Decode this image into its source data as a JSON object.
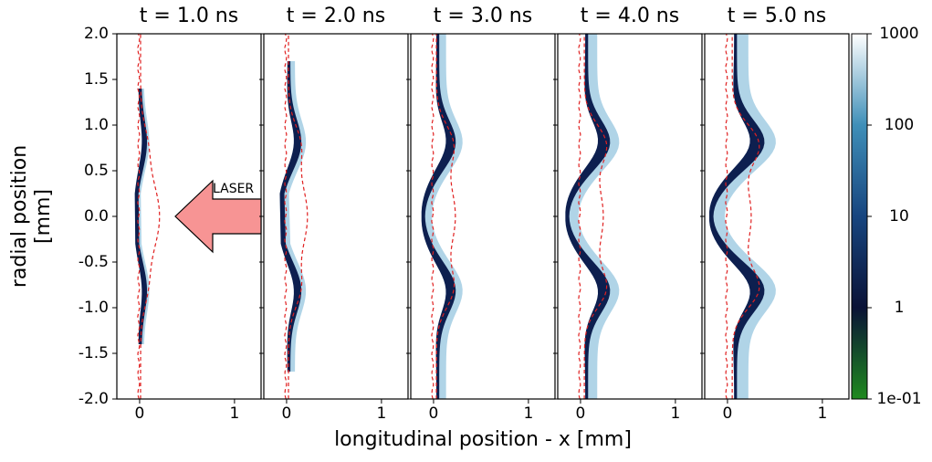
{
  "chart_data": [
    {
      "type": "heatmap",
      "title": "t = 1.0 ns",
      "xlim": [
        -0.24,
        1.28
      ],
      "ylim": [
        -2,
        2
      ],
      "xticks": [
        0,
        1
      ],
      "yticks": [
        {
          "value": 2,
          "label": "2.0"
        },
        1.5,
        {
          "value": 1,
          "label": "1.0"
        },
        0.5,
        {
          "value": 0,
          "label": "0.0"
        },
        -0.5,
        {
          "value": -1,
          "label": "-1.0"
        },
        -1.5,
        {
          "value": -2,
          "label": "-2.0"
        }
      ],
      "ylabel": [
        "radial position",
        "[mm]"
      ],
      "xlabel": "longitudinal position - x [mm]",
      "annotation": "LASER"
    },
    {
      "type": "heatmap",
      "title": "t = 2.0 ns",
      "xlim": [
        -0.24,
        1.28
      ],
      "ylim": [
        -2,
        2
      ],
      "xticks": [
        0,
        1
      ]
    },
    {
      "type": "heatmap",
      "title": "t = 3.0 ns",
      "xlim": [
        -0.24,
        1.28
      ],
      "ylim": [
        -2,
        2
      ],
      "xticks": [
        0,
        1
      ]
    },
    {
      "type": "heatmap",
      "title": "t = 4.0 ns",
      "xlim": [
        -0.24,
        1.28
      ],
      "ylim": [
        -2,
        2
      ],
      "xticks": [
        0,
        1
      ]
    },
    {
      "type": "heatmap",
      "title": "t = 5.0 ns",
      "xlim": [
        -0.24,
        1.28
      ],
      "ylim": [
        -2,
        2
      ],
      "xticks": [
        0,
        1
      ]
    },
    {
      "type": "colorbar",
      "log_scale": true,
      "ylim": [
        0.1,
        1000
      ],
      "yticks": [
        {
          "value": 0.1,
          "label": "1e-01"
        },
        1,
        10,
        100,
        1000
      ],
      "colors": [
        "#1f8a1f",
        "#0a1236",
        "#17457f",
        "#3f8fb8",
        "#ffffff"
      ]
    }
  ]
}
